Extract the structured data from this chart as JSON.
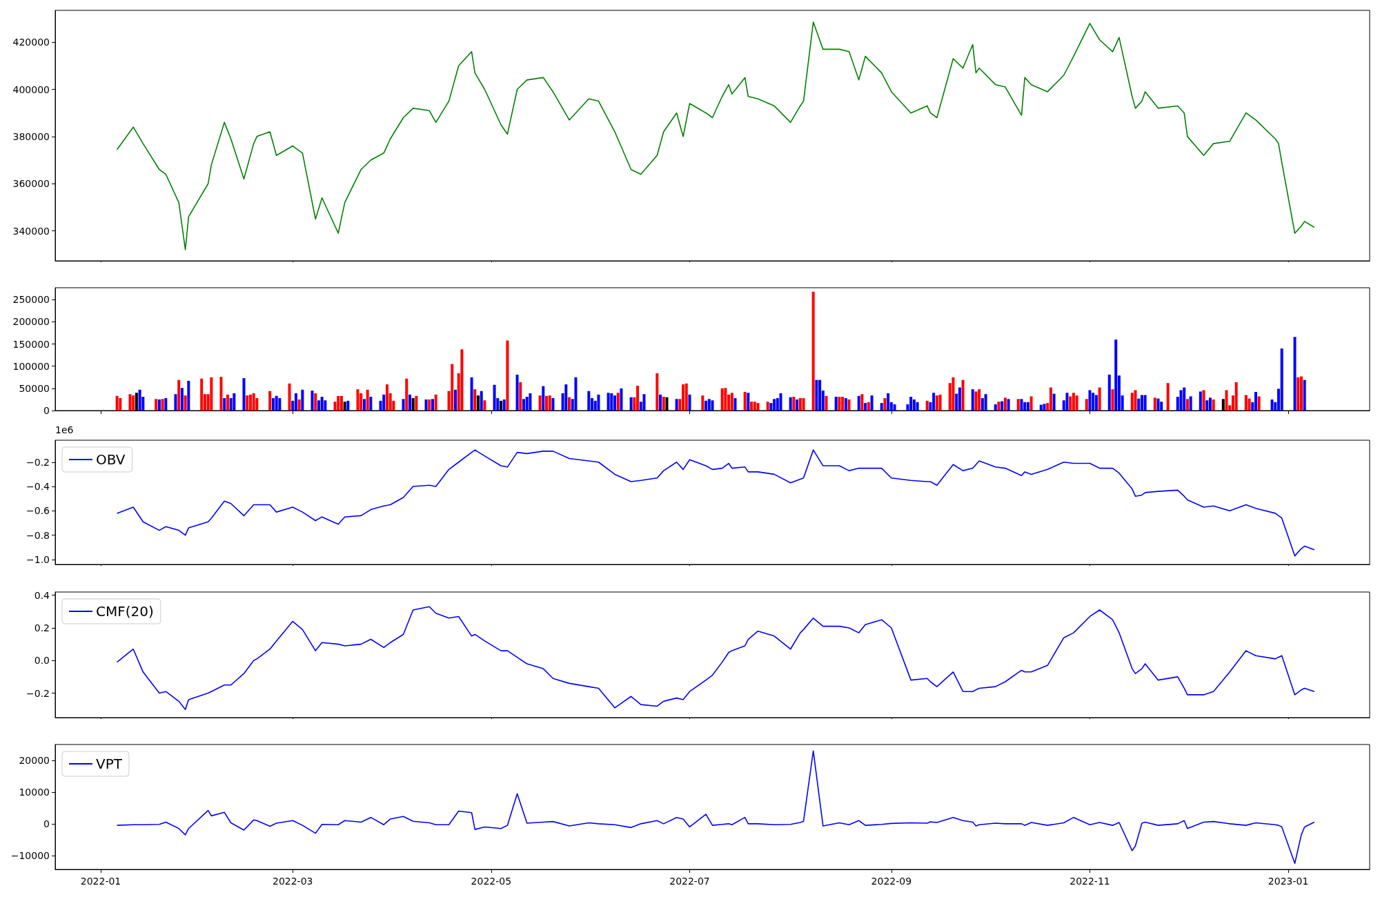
{
  "chart_data": [
    {
      "type": "line",
      "x": [
        "2022-01-06",
        "2022-01-11",
        "2022-01-14",
        "2022-01-19",
        "2022-01-21",
        "2022-01-25",
        "2022-01-27",
        "2022-01-28",
        "2022-02-03",
        "2022-02-04",
        "2022-02-08",
        "2022-02-10",
        "2022-02-14",
        "2022-02-17",
        "2022-02-18",
        "2022-02-22",
        "2022-02-24",
        "2022-03-01",
        "2022-03-04",
        "2022-03-08",
        "2022-03-10",
        "2022-03-15",
        "2022-03-17",
        "2022-03-22",
        "2022-03-25",
        "2022-03-29",
        "2022-03-31",
        "2022-04-04",
        "2022-04-07",
        "2022-04-12",
        "2022-04-14",
        "2022-04-18",
        "2022-04-21",
        "2022-04-25",
        "2022-04-26",
        "2022-04-29",
        "2022-05-04",
        "2022-05-06",
        "2022-05-09",
        "2022-05-12",
        "2022-05-17",
        "2022-05-20",
        "2022-05-25",
        "2022-05-31",
        "2022-06-03",
        "2022-06-08",
        "2022-06-13",
        "2022-06-16",
        "2022-06-21",
        "2022-06-23",
        "2022-06-27",
        "2022-06-29",
        "2022-07-01",
        "2022-07-06",
        "2022-07-08",
        "2022-07-11",
        "2022-07-13",
        "2022-07-14",
        "2022-07-18",
        "2022-07-19",
        "2022-07-22",
        "2022-07-27",
        "2022-08-01",
        "2022-08-04",
        "2022-08-05",
        "2022-08-08",
        "2022-08-11",
        "2022-08-16",
        "2022-08-19",
        "2022-08-22",
        "2022-08-24",
        "2022-08-29",
        "2022-09-01",
        "2022-09-07",
        "2022-09-12",
        "2022-09-13",
        "2022-09-15",
        "2022-09-20",
        "2022-09-23",
        "2022-09-26",
        "2022-09-27",
        "2022-09-28",
        "2022-10-03",
        "2022-10-06",
        "2022-10-11",
        "2022-10-12",
        "2022-10-14",
        "2022-10-19",
        "2022-10-24",
        "2022-10-27",
        "2022-11-01",
        "2022-11-04",
        "2022-11-08",
        "2022-11-10",
        "2022-11-14",
        "2022-11-15",
        "2022-11-17",
        "2022-11-18",
        "2022-11-22",
        "2022-11-28",
        "2022-11-30",
        "2022-12-01",
        "2022-12-06",
        "2022-12-09",
        "2022-12-14",
        "2022-12-19",
        "2022-12-22",
        "2022-12-28",
        "2022-12-29",
        "2022-12-30",
        "2023-01-03",
        "2023-01-05",
        "2023-01-06",
        "2023-01-09"
      ],
      "series": [
        {
          "color": "#008000",
          "values": [
            374500,
            384000,
            377000,
            366000,
            364000,
            352000,
            332000,
            346000,
            360000,
            368000,
            386000,
            379000,
            362000,
            377000,
            380000,
            382000,
            372000,
            376000,
            373000,
            345000,
            354000,
            339000,
            352000,
            366000,
            370000,
            373000,
            379000,
            388000,
            392000,
            391000,
            386000,
            395000,
            410000,
            416000,
            407000,
            400000,
            385000,
            381000,
            400000,
            404000,
            405000,
            399000,
            387000,
            396000,
            395000,
            382000,
            366000,
            364000,
            372000,
            382000,
            390000,
            380000,
            394000,
            390000,
            388000,
            397000,
            402000,
            398000,
            405000,
            397000,
            396000,
            393000,
            386000,
            393000,
            395000,
            428500,
            417000,
            417000,
            416000,
            404000,
            414000,
            407000,
            399000,
            390000,
            393000,
            390000,
            388000,
            413000,
            409000,
            419000,
            407000,
            409000,
            402000,
            401000,
            389000,
            405000,
            402000,
            399000,
            406000,
            414000,
            428000,
            421000,
            416000,
            422000,
            397000,
            392000,
            395000,
            399000,
            392000,
            393000,
            390000,
            380000,
            372000,
            377000,
            378000,
            390000,
            387000,
            379000,
            377000,
            369000,
            339000,
            342000,
            344000,
            341500
          ]
        }
      ],
      "xlim": [
        "2021-12-18",
        "2023-01-26"
      ],
      "xticks": [
        "2022-01",
        "2022-03",
        "2022-05",
        "2022-07",
        "2022-09",
        "2022-11",
        "2023-01"
      ],
      "ylim": [
        327300,
        433500
      ],
      "yticks": [
        340000,
        360000,
        380000,
        400000,
        420000
      ],
      "tick_labels": "y"
    },
    {
      "type": "bar",
      "x": [
        "2022-01-06",
        "2022-01-07",
        "2022-01-10",
        "2022-01-11",
        "2022-01-12",
        "2022-01-13",
        "2022-01-14",
        "2022-01-18",
        "2022-01-19",
        "2022-01-20",
        "2022-01-21",
        "2022-01-24",
        "2022-01-25",
        "2022-01-26",
        "2022-01-27",
        "2022-01-28",
        "2022-02-01",
        "2022-02-02",
        "2022-02-03",
        "2022-02-04",
        "2022-02-07",
        "2022-02-08",
        "2022-02-09",
        "2022-02-10",
        "2022-02-11",
        "2022-02-14",
        "2022-02-15",
        "2022-02-16",
        "2022-02-17",
        "2022-02-18",
        "2022-02-22",
        "2022-02-23",
        "2022-02-24",
        "2022-02-25",
        "2022-02-28",
        "2022-03-01",
        "2022-03-02",
        "2022-03-03",
        "2022-03-04",
        "2022-03-07",
        "2022-03-08",
        "2022-03-09",
        "2022-03-10",
        "2022-03-11",
        "2022-03-14",
        "2022-03-15",
        "2022-03-16",
        "2022-03-17",
        "2022-03-18",
        "2022-03-21",
        "2022-03-22",
        "2022-03-23",
        "2022-03-24",
        "2022-03-25",
        "2022-03-28",
        "2022-03-29",
        "2022-03-30",
        "2022-03-31",
        "2022-04-01",
        "2022-04-04",
        "2022-04-05",
        "2022-04-06",
        "2022-04-07",
        "2022-04-08",
        "2022-04-11",
        "2022-04-12",
        "2022-04-13",
        "2022-04-14",
        "2022-04-18",
        "2022-04-19",
        "2022-04-20",
        "2022-04-21",
        "2022-04-22",
        "2022-04-25",
        "2022-04-26",
        "2022-04-27",
        "2022-04-28",
        "2022-04-29",
        "2022-05-02",
        "2022-05-03",
        "2022-05-04",
        "2022-05-05",
        "2022-05-06",
        "2022-05-09",
        "2022-05-10",
        "2022-05-11",
        "2022-05-12",
        "2022-05-13",
        "2022-05-16",
        "2022-05-17",
        "2022-05-18",
        "2022-05-19",
        "2022-05-20",
        "2022-05-23",
        "2022-05-24",
        "2022-05-25",
        "2022-05-26",
        "2022-05-27",
        "2022-05-31",
        "2022-06-01",
        "2022-06-02",
        "2022-06-03",
        "2022-06-06",
        "2022-06-07",
        "2022-06-08",
        "2022-06-09",
        "2022-06-10",
        "2022-06-13",
        "2022-06-14",
        "2022-06-15",
        "2022-06-16",
        "2022-06-17",
        "2022-06-21",
        "2022-06-22",
        "2022-06-23",
        "2022-06-24",
        "2022-06-27",
        "2022-06-28",
        "2022-06-29",
        "2022-06-30",
        "2022-07-01",
        "2022-07-05",
        "2022-07-06",
        "2022-07-07",
        "2022-07-08",
        "2022-07-11",
        "2022-07-12",
        "2022-07-13",
        "2022-07-14",
        "2022-07-15",
        "2022-07-18",
        "2022-07-19",
        "2022-07-20",
        "2022-07-21",
        "2022-07-22",
        "2022-07-25",
        "2022-07-26",
        "2022-07-27",
        "2022-07-28",
        "2022-07-29",
        "2022-08-01",
        "2022-08-02",
        "2022-08-03",
        "2022-08-04",
        "2022-08-05",
        "2022-08-08",
        "2022-08-09",
        "2022-08-10",
        "2022-08-11",
        "2022-08-12",
        "2022-08-15",
        "2022-08-16",
        "2022-08-17",
        "2022-08-18",
        "2022-08-19",
        "2022-08-22",
        "2022-08-23",
        "2022-08-24",
        "2022-08-25",
        "2022-08-26",
        "2022-08-29",
        "2022-08-30",
        "2022-08-31",
        "2022-09-01",
        "2022-09-02",
        "2022-09-06",
        "2022-09-07",
        "2022-09-08",
        "2022-09-09",
        "2022-09-12",
        "2022-09-13",
        "2022-09-14",
        "2022-09-15",
        "2022-09-16",
        "2022-09-19",
        "2022-09-20",
        "2022-09-21",
        "2022-09-22",
        "2022-09-23",
        "2022-09-26",
        "2022-09-27",
        "2022-09-28",
        "2022-09-29",
        "2022-09-30",
        "2022-10-03",
        "2022-10-04",
        "2022-10-05",
        "2022-10-06",
        "2022-10-07",
        "2022-10-10",
        "2022-10-11",
        "2022-10-12",
        "2022-10-13",
        "2022-10-14",
        "2022-10-17",
        "2022-10-18",
        "2022-10-19",
        "2022-10-20",
        "2022-10-21",
        "2022-10-24",
        "2022-10-25",
        "2022-10-26",
        "2022-10-27",
        "2022-10-28",
        "2022-10-31",
        "2022-11-01",
        "2022-11-02",
        "2022-11-03",
        "2022-11-04",
        "2022-11-07",
        "2022-11-08",
        "2022-11-09",
        "2022-11-10",
        "2022-11-11",
        "2022-11-14",
        "2022-11-15",
        "2022-11-16",
        "2022-11-17",
        "2022-11-18",
        "2022-11-21",
        "2022-11-22",
        "2022-11-23",
        "2022-11-25",
        "2022-11-28",
        "2022-11-29",
        "2022-11-30",
        "2022-12-01",
        "2022-12-02",
        "2022-12-05",
        "2022-12-06",
        "2022-12-07",
        "2022-12-08",
        "2022-12-09",
        "2022-12-12",
        "2022-12-13",
        "2022-12-14",
        "2022-12-15",
        "2022-12-16",
        "2022-12-19",
        "2022-12-20",
        "2022-12-21",
        "2022-12-22",
        "2022-12-23",
        "2022-12-27",
        "2022-12-28",
        "2022-12-29",
        "2022-12-30",
        "2023-01-03",
        "2023-01-04",
        "2023-01-05",
        "2023-01-06"
      ],
      "values": [
        33000,
        28000,
        37000,
        34000,
        40000,
        47000,
        31000,
        26000,
        25000,
        26000,
        28000,
        37000,
        69000,
        51000,
        34000,
        67000,
        72000,
        37000,
        37000,
        75000,
        76000,
        28000,
        36000,
        28000,
        39000,
        73000,
        34000,
        36000,
        39000,
        28000,
        44000,
        28000,
        33000,
        28000,
        61000,
        22000,
        39000,
        25000,
        47000,
        45000,
        39000,
        23000,
        31000,
        23000,
        20000,
        33000,
        33000,
        20000,
        22000,
        48000,
        39000,
        26000,
        47000,
        31000,
        22000,
        36000,
        59000,
        39000,
        22000,
        26000,
        72000,
        36000,
        28000,
        33000,
        25000,
        25000,
        26000,
        36000,
        44000,
        105000,
        47000,
        84000,
        138000,
        75000,
        48000,
        34000,
        44000,
        23000,
        58000,
        28000,
        22000,
        25000,
        158000,
        81000,
        64000,
        26000,
        31000,
        39000,
        34000,
        55000,
        33000,
        34000,
        28000,
        39000,
        59000,
        30000,
        26000,
        75000,
        44000,
        28000,
        22000,
        36000,
        40000,
        39000,
        34000,
        40000,
        50000,
        30000,
        30000,
        56000,
        20000,
        37000,
        84000,
        36000,
        31000,
        30000,
        26000,
        26000,
        59000,
        61000,
        36000,
        34000,
        22000,
        26000,
        23000,
        50000,
        51000,
        36000,
        40000,
        28000,
        42000,
        40000,
        20000,
        20000,
        17000,
        20000,
        17000,
        26000,
        28000,
        39000,
        30000,
        31000,
        25000,
        28000,
        28000,
        268000,
        69000,
        69000,
        45000,
        33000,
        31000,
        31000,
        31000,
        28000,
        25000,
        33000,
        37000,
        17000,
        19000,
        34000,
        17000,
        28000,
        39000,
        19000,
        14000,
        14000,
        31000,
        25000,
        19000,
        22000,
        19000,
        40000,
        34000,
        36000,
        62000,
        75000,
        38000,
        52000,
        69000,
        48000,
        43000,
        48000,
        28000,
        37000,
        14000,
        20000,
        21000,
        29000,
        26000,
        26000,
        26000,
        19000,
        19000,
        32000,
        13000,
        15000,
        17000,
        52000,
        38000,
        23000,
        40000,
        32000,
        40000,
        34000,
        26000,
        46000,
        40000,
        35000,
        52000,
        81000,
        48000,
        160000,
        79000,
        34000,
        40000,
        46000,
        27000,
        35000,
        35000,
        29000,
        27000,
        20000,
        62000,
        31000,
        46000,
        52000,
        26000,
        32000,
        43000,
        46000,
        23000,
        29000,
        25000,
        26000,
        46000,
        12000,
        34000,
        64000,
        35000,
        27000,
        19000,
        42000,
        32000,
        25000,
        19000,
        49000,
        140000,
        166000,
        75000,
        77000,
        69000
      ],
      "colors": [
        "#ff0000",
        "#ff0000",
        "#ff0000",
        "#ff0000",
        "#000000",
        "#0000ff",
        "#0000ff",
        "#ff0000",
        "#0000ff",
        "#ff0000",
        "#0000ff",
        "#0000ff",
        "#ff0000",
        "#0000ff",
        "#ff0000",
        "#0000ff",
        "#ff0000",
        "#ff0000",
        "#ff0000",
        "#ff0000",
        "#ff0000",
        "#0000ff",
        "#ff0000",
        "#0000ff",
        "#0000ff",
        "#0000ff",
        "#ff0000",
        "#ff0000",
        "#ff0000",
        "#ff0000",
        "#ff0000",
        "#0000ff",
        "#0000ff",
        "#0000ff",
        "#ff0000",
        "#0000ff",
        "#0000ff",
        "#ff0000",
        "#0000ff",
        "#0000ff",
        "#ff0000",
        "#0000ff",
        "#0000ff",
        "#0000ff",
        "#ff0000",
        "#ff0000",
        "#ff0000",
        "#000000",
        "#0000ff",
        "#ff0000",
        "#ff0000",
        "#0000ff",
        "#ff0000",
        "#0000ff",
        "#0000ff",
        "#0000ff",
        "#ff0000",
        "#ff0000",
        "#ff0000",
        "#0000ff",
        "#ff0000",
        "#0000ff",
        "#000000",
        "#ff0000",
        "#0000ff",
        "#ff0000",
        "#0000ff",
        "#ff0000",
        "#ff0000",
        "#ff0000",
        "#0000ff",
        "#ff0000",
        "#ff0000",
        "#0000ff",
        "#ff0000",
        "#000000",
        "#0000ff",
        "#ff0000",
        "#0000ff",
        "#0000ff",
        "#000000",
        "#0000ff",
        "#ff0000",
        "#0000ff",
        "#ff0000",
        "#0000ff",
        "#0000ff",
        "#0000ff",
        "#ff0000",
        "#0000ff",
        "#ff0000",
        "#ff0000",
        "#0000ff",
        "#0000ff",
        "#0000ff",
        "#ff0000",
        "#0000ff",
        "#0000ff",
        "#0000ff",
        "#0000ff",
        "#0000ff",
        "#0000ff",
        "#0000ff",
        "#0000ff",
        "#0000ff",
        "#ff0000",
        "#0000ff",
        "#0000ff",
        "#ff0000",
        "#ff0000",
        "#0000ff",
        "#0000ff",
        "#ff0000",
        "#0000ff",
        "#ff0000",
        "#000000",
        "#0000ff",
        "#ff0000",
        "#ff0000",
        "#ff0000",
        "#0000ff",
        "#ff0000",
        "#0000ff",
        "#0000ff",
        "#0000ff",
        "#ff0000",
        "#ff0000",
        "#ff0000",
        "#ff0000",
        "#0000ff",
        "#ff0000",
        "#0000ff",
        "#ff0000",
        "#ff0000",
        "#ff0000",
        "#ff0000",
        "#0000ff",
        "#0000ff",
        "#0000ff",
        "#0000ff",
        "#0000ff",
        "#ff0000",
        "#0000ff",
        "#ff0000",
        "#ff0000",
        "#ff0000",
        "#0000ff",
        "#0000ff",
        "#0000ff",
        "#ff0000",
        "#0000ff",
        "#ff0000",
        "#ff0000",
        "#0000ff",
        "#ff0000",
        "#0000ff",
        "#ff0000",
        "#0000ff",
        "#ff0000",
        "#0000ff",
        "#0000ff",
        "#ff0000",
        "#0000ff",
        "#0000ff",
        "#0000ff",
        "#0000ff",
        "#0000ff",
        "#0000ff",
        "#0000ff",
        "#ff0000",
        "#0000ff",
        "#0000ff",
        "#ff0000",
        "#ff0000",
        "#ff0000",
        "#ff0000",
        "#0000ff",
        "#0000ff",
        "#ff0000",
        "#0000ff",
        "#ff0000",
        "#ff0000",
        "#0000ff",
        "#0000ff",
        "#0000ff",
        "#ff0000",
        "#0000ff",
        "#ff0000",
        "#0000ff",
        "#ff0000",
        "#0000ff",
        "#0000ff",
        "#0000ff",
        "#ff0000",
        "#0000ff",
        "#0000ff",
        "#ff0000",
        "#ff0000",
        "#0000ff",
        "#0000ff",
        "#0000ff",
        "#ff0000",
        "#ff0000",
        "#ff0000",
        "#ff0000",
        "#0000ff",
        "#0000ff",
        "#0000ff",
        "#ff0000",
        "#0000ff",
        "#ff0000",
        "#0000ff",
        "#0000ff",
        "#0000ff",
        "#ff0000",
        "#ff0000",
        "#0000ff",
        "#0000ff",
        "#0000ff",
        "#ff0000",
        "#0000ff",
        "#0000ff",
        "#ff0000",
        "#0000ff",
        "#0000ff",
        "#0000ff",
        "#ff0000",
        "#0000ff",
        "#0000ff",
        "#ff0000",
        "#0000ff",
        "#0000ff",
        "#ff0000",
        "#000000",
        "#ff0000",
        "#ff0000",
        "#ff0000",
        "#ff0000",
        "#ff0000",
        "#ff0000",
        "#0000ff",
        "#0000ff",
        "#ff0000",
        "#0000ff",
        "#0000ff",
        "#0000ff",
        "#0000ff",
        "#0000ff",
        "#ff0000",
        "#ff0000",
        "#0000ff"
      ],
      "xlim": [
        "2021-12-18",
        "2023-01-26"
      ],
      "xticks": [
        "2022-01",
        "2022-03",
        "2022-05",
        "2022-07",
        "2022-09",
        "2022-11",
        "2023-01"
      ],
      "ylim": [
        0,
        277000
      ],
      "yticks": [
        0,
        50000,
        100000,
        150000,
        200000,
        250000
      ],
      "tick_labels": "y"
    },
    {
      "type": "line",
      "x": [
        "2022-01-06",
        "2022-01-11",
        "2022-01-14",
        "2022-01-19",
        "2022-01-21",
        "2022-01-25",
        "2022-01-27",
        "2022-01-28",
        "2022-02-03",
        "2022-02-04",
        "2022-02-08",
        "2022-02-10",
        "2022-02-14",
        "2022-02-17",
        "2022-02-18",
        "2022-02-22",
        "2022-02-24",
        "2022-03-01",
        "2022-03-04",
        "2022-03-08",
        "2022-03-10",
        "2022-03-15",
        "2022-03-17",
        "2022-03-22",
        "2022-03-25",
        "2022-03-29",
        "2022-03-31",
        "2022-04-04",
        "2022-04-07",
        "2022-04-12",
        "2022-04-14",
        "2022-04-18",
        "2022-04-21",
        "2022-04-25",
        "2022-04-26",
        "2022-04-29",
        "2022-05-04",
        "2022-05-06",
        "2022-05-09",
        "2022-05-12",
        "2022-05-17",
        "2022-05-20",
        "2022-05-25",
        "2022-05-31",
        "2022-06-03",
        "2022-06-08",
        "2022-06-13",
        "2022-06-16",
        "2022-06-21",
        "2022-06-23",
        "2022-06-27",
        "2022-06-29",
        "2022-07-01",
        "2022-07-06",
        "2022-07-08",
        "2022-07-11",
        "2022-07-13",
        "2022-07-14",
        "2022-07-18",
        "2022-07-19",
        "2022-07-22",
        "2022-07-27",
        "2022-08-01",
        "2022-08-04",
        "2022-08-05",
        "2022-08-08",
        "2022-08-11",
        "2022-08-16",
        "2022-08-19",
        "2022-08-22",
        "2022-08-24",
        "2022-08-29",
        "2022-09-01",
        "2022-09-07",
        "2022-09-12",
        "2022-09-13",
        "2022-09-15",
        "2022-09-20",
        "2022-09-23",
        "2022-09-26",
        "2022-09-27",
        "2022-09-28",
        "2022-10-03",
        "2022-10-06",
        "2022-10-11",
        "2022-10-12",
        "2022-10-14",
        "2022-10-19",
        "2022-10-24",
        "2022-10-27",
        "2022-11-01",
        "2022-11-04",
        "2022-11-08",
        "2022-11-10",
        "2022-11-14",
        "2022-11-15",
        "2022-11-17",
        "2022-11-18",
        "2022-11-22",
        "2022-11-28",
        "2022-11-30",
        "2022-12-01",
        "2022-12-06",
        "2022-12-09",
        "2022-12-14",
        "2022-12-19",
        "2022-12-22",
        "2022-12-28",
        "2022-12-29",
        "2022-12-30",
        "2023-01-03",
        "2023-01-05",
        "2023-01-06",
        "2023-01-09"
      ],
      "series": [
        {
          "name": "OBV",
          "color": "#0000ff",
          "values": [
            -0.62,
            -0.57,
            -0.69,
            -0.76,
            -0.73,
            -0.76,
            -0.8,
            -0.74,
            -0.69,
            -0.66,
            -0.52,
            -0.54,
            -0.64,
            -0.55,
            -0.55,
            -0.55,
            -0.61,
            -0.57,
            -0.61,
            -0.68,
            -0.65,
            -0.71,
            -0.65,
            -0.64,
            -0.59,
            -0.56,
            -0.55,
            -0.49,
            -0.4,
            -0.39,
            -0.4,
            -0.26,
            -0.2,
            -0.12,
            -0.1,
            -0.15,
            -0.23,
            -0.24,
            -0.12,
            -0.13,
            -0.11,
            -0.11,
            -0.17,
            -0.19,
            -0.2,
            -0.3,
            -0.36,
            -0.35,
            -0.33,
            -0.27,
            -0.2,
            -0.26,
            -0.18,
            -0.23,
            -0.26,
            -0.25,
            -0.21,
            -0.25,
            -0.24,
            -0.28,
            -0.28,
            -0.3,
            -0.37,
            -0.34,
            -0.33,
            -0.1,
            -0.23,
            -0.23,
            -0.27,
            -0.25,
            -0.25,
            -0.25,
            -0.33,
            -0.35,
            -0.36,
            -0.36,
            -0.39,
            -0.22,
            -0.27,
            -0.25,
            -0.22,
            -0.19,
            -0.24,
            -0.25,
            -0.31,
            -0.28,
            -0.3,
            -0.26,
            -0.2,
            -0.21,
            -0.21,
            -0.25,
            -0.25,
            -0.29,
            -0.42,
            -0.48,
            -0.47,
            -0.45,
            -0.44,
            -0.43,
            -0.48,
            -0.51,
            -0.57,
            -0.56,
            -0.6,
            -0.55,
            -0.58,
            -0.62,
            -0.64,
            -0.66,
            -0.97,
            -0.91,
            -0.89,
            -0.92
          ]
        }
      ],
      "xlim": [
        "2021-12-18",
        "2023-01-26"
      ],
      "xticks": [
        "2022-01",
        "2022-03",
        "2022-05",
        "2022-07",
        "2022-09",
        "2022-11",
        "2023-01"
      ],
      "ylim": [
        -1.04,
        -0.02
      ],
      "yticks": [
        {
          "value": -1.0,
          "label": "−1.0"
        },
        {
          "value": -0.8,
          "label": "−0.8"
        },
        {
          "value": -0.6,
          "label": "−0.6"
        },
        {
          "value": -0.4,
          "label": "−0.4"
        },
        {
          "value": -0.2,
          "label": "−0.2"
        }
      ],
      "annotations": [
        "1e6"
      ],
      "legend": "top left",
      "tick_labels": "y"
    },
    {
      "type": "line",
      "x": [
        "2022-01-06",
        "2022-01-11",
        "2022-01-14",
        "2022-01-19",
        "2022-01-21",
        "2022-01-25",
        "2022-01-27",
        "2022-01-28",
        "2022-02-03",
        "2022-02-04",
        "2022-02-08",
        "2022-02-10",
        "2022-02-14",
        "2022-02-17",
        "2022-02-18",
        "2022-02-22",
        "2022-02-24",
        "2022-03-01",
        "2022-03-04",
        "2022-03-08",
        "2022-03-10",
        "2022-03-15",
        "2022-03-17",
        "2022-03-22",
        "2022-03-25",
        "2022-03-29",
        "2022-03-31",
        "2022-04-04",
        "2022-04-07",
        "2022-04-12",
        "2022-04-14",
        "2022-04-18",
        "2022-04-21",
        "2022-04-25",
        "2022-04-26",
        "2022-04-29",
        "2022-05-04",
        "2022-05-06",
        "2022-05-09",
        "2022-05-12",
        "2022-05-17",
        "2022-05-20",
        "2022-05-25",
        "2022-05-31",
        "2022-06-03",
        "2022-06-08",
        "2022-06-13",
        "2022-06-16",
        "2022-06-21",
        "2022-06-23",
        "2022-06-27",
        "2022-06-29",
        "2022-07-01",
        "2022-07-06",
        "2022-07-08",
        "2022-07-11",
        "2022-07-13",
        "2022-07-14",
        "2022-07-18",
        "2022-07-19",
        "2022-07-22",
        "2022-07-27",
        "2022-08-01",
        "2022-08-04",
        "2022-08-05",
        "2022-08-08",
        "2022-08-11",
        "2022-08-16",
        "2022-08-19",
        "2022-08-22",
        "2022-08-24",
        "2022-08-29",
        "2022-09-01",
        "2022-09-07",
        "2022-09-12",
        "2022-09-13",
        "2022-09-15",
        "2022-09-20",
        "2022-09-23",
        "2022-09-26",
        "2022-09-27",
        "2022-09-28",
        "2022-10-03",
        "2022-10-06",
        "2022-10-11",
        "2022-10-12",
        "2022-10-14",
        "2022-10-19",
        "2022-10-24",
        "2022-10-27",
        "2022-11-01",
        "2022-11-04",
        "2022-11-08",
        "2022-11-10",
        "2022-11-14",
        "2022-11-15",
        "2022-11-17",
        "2022-11-18",
        "2022-11-22",
        "2022-11-28",
        "2022-11-30",
        "2022-12-01",
        "2022-12-06",
        "2022-12-09",
        "2022-12-14",
        "2022-12-19",
        "2022-12-22",
        "2022-12-28",
        "2022-12-29",
        "2022-12-30",
        "2023-01-03",
        "2023-01-05",
        "2023-01-06",
        "2023-01-09"
      ],
      "series": [
        {
          "name": "CMF(20)",
          "color": "#0000ff",
          "values": [
            -0.01,
            0.07,
            -0.07,
            -0.2,
            -0.19,
            -0.25,
            -0.3,
            -0.24,
            -0.2,
            -0.19,
            -0.15,
            -0.15,
            -0.08,
            0.0,
            0.01,
            0.07,
            0.12,
            0.24,
            0.19,
            0.06,
            0.11,
            0.1,
            0.09,
            0.1,
            0.13,
            0.08,
            0.11,
            0.16,
            0.31,
            0.33,
            0.29,
            0.26,
            0.27,
            0.15,
            0.16,
            0.12,
            0.06,
            0.06,
            0.02,
            -0.02,
            -0.05,
            -0.11,
            -0.14,
            -0.16,
            -0.17,
            -0.29,
            -0.22,
            -0.27,
            -0.28,
            -0.25,
            -0.23,
            -0.24,
            -0.19,
            -0.12,
            -0.09,
            -0.01,
            0.05,
            0.06,
            0.09,
            0.13,
            0.18,
            0.15,
            0.07,
            0.17,
            0.19,
            0.26,
            0.21,
            0.21,
            0.2,
            0.17,
            0.22,
            0.25,
            0.2,
            -0.12,
            -0.11,
            -0.13,
            -0.16,
            -0.07,
            -0.19,
            -0.19,
            -0.18,
            -0.17,
            -0.16,
            -0.13,
            -0.06,
            -0.07,
            -0.07,
            -0.03,
            0.14,
            0.17,
            0.27,
            0.31,
            0.25,
            0.17,
            -0.05,
            -0.08,
            -0.05,
            -0.02,
            -0.12,
            -0.1,
            -0.17,
            -0.21,
            -0.21,
            -0.19,
            -0.07,
            0.06,
            0.03,
            0.01,
            0.02,
            0.03,
            -0.21,
            -0.18,
            -0.17,
            -0.19
          ]
        }
      ],
      "xlim": [
        "2021-12-18",
        "2023-01-26"
      ],
      "xticks": [
        "2022-01",
        "2022-03",
        "2022-05",
        "2022-07",
        "2022-09",
        "2022-11",
        "2023-01"
      ],
      "ylim": [
        -0.35,
        0.42
      ],
      "yticks": [
        {
          "value": -0.2,
          "label": "−0.2"
        },
        {
          "value": 0,
          "label": "0.0"
        },
        {
          "value": 0.2,
          "label": "0.2"
        },
        {
          "value": 0.4,
          "label": "0.4"
        }
      ],
      "legend": "top left",
      "tick_labels": "y"
    },
    {
      "type": "line",
      "x": [
        "2022-01-06",
        "2022-01-11",
        "2022-01-14",
        "2022-01-19",
        "2022-01-21",
        "2022-01-25",
        "2022-01-27",
        "2022-01-28",
        "2022-02-03",
        "2022-02-04",
        "2022-02-08",
        "2022-02-10",
        "2022-02-14",
        "2022-02-17",
        "2022-02-18",
        "2022-02-22",
        "2022-02-24",
        "2022-03-01",
        "2022-03-04",
        "2022-03-08",
        "2022-03-10",
        "2022-03-15",
        "2022-03-17",
        "2022-03-22",
        "2022-03-25",
        "2022-03-29",
        "2022-03-31",
        "2022-04-04",
        "2022-04-07",
        "2022-04-12",
        "2022-04-14",
        "2022-04-18",
        "2022-04-21",
        "2022-04-25",
        "2022-04-26",
        "2022-04-29",
        "2022-05-04",
        "2022-05-06",
        "2022-05-09",
        "2022-05-12",
        "2022-05-17",
        "2022-05-20",
        "2022-05-25",
        "2022-05-31",
        "2022-06-03",
        "2022-06-08",
        "2022-06-13",
        "2022-06-16",
        "2022-06-21",
        "2022-06-23",
        "2022-06-27",
        "2022-06-29",
        "2022-07-01",
        "2022-07-06",
        "2022-07-08",
        "2022-07-11",
        "2022-07-13",
        "2022-07-14",
        "2022-07-18",
        "2022-07-19",
        "2022-07-22",
        "2022-07-27",
        "2022-08-01",
        "2022-08-04",
        "2022-08-05",
        "2022-08-08",
        "2022-08-11",
        "2022-08-16",
        "2022-08-19",
        "2022-08-22",
        "2022-08-24",
        "2022-08-29",
        "2022-09-01",
        "2022-09-07",
        "2022-09-12",
        "2022-09-13",
        "2022-09-15",
        "2022-09-20",
        "2022-09-23",
        "2022-09-26",
        "2022-09-27",
        "2022-09-28",
        "2022-10-03",
        "2022-10-06",
        "2022-10-11",
        "2022-10-12",
        "2022-10-14",
        "2022-10-19",
        "2022-10-24",
        "2022-10-27",
        "2022-11-01",
        "2022-11-04",
        "2022-11-08",
        "2022-11-10",
        "2022-11-14",
        "2022-11-15",
        "2022-11-17",
        "2022-11-18",
        "2022-11-22",
        "2022-11-28",
        "2022-11-30",
        "2022-12-01",
        "2022-12-06",
        "2022-12-09",
        "2022-12-14",
        "2022-12-19",
        "2022-12-22",
        "2022-12-28",
        "2022-12-29",
        "2022-12-30",
        "2023-01-03",
        "2023-01-05",
        "2023-01-06",
        "2023-01-09"
      ],
      "series": [
        {
          "name": "VPT",
          "color": "#0000ff",
          "values": [
            -500,
            -300,
            -300,
            -200,
            500,
            -1500,
            -3500,
            -1500,
            4200,
            2500,
            3600,
            300,
            -2000,
            1200,
            1000,
            -800,
            200,
            1000,
            -500,
            -3000,
            -200,
            -300,
            1000,
            500,
            2000,
            -300,
            1500,
            2300,
            800,
            300,
            -300,
            -300,
            4000,
            3500,
            -1800,
            -1000,
            -1500,
            -500,
            9500,
            200,
            500,
            700,
            -700,
            300,
            0,
            -300,
            -1200,
            0,
            1000,
            0,
            2000,
            1500,
            -1000,
            3000,
            -500,
            -200,
            0,
            -300,
            2000,
            0,
            0,
            -300,
            -200,
            400,
            800,
            23000,
            -700,
            300,
            -300,
            1000,
            -500,
            -200,
            100,
            300,
            200,
            600,
            400,
            2000,
            1000,
            500,
            -700,
            -300,
            200,
            0,
            0,
            -500,
            400,
            -500,
            300,
            2000,
            -300,
            400,
            -500,
            400,
            -8500,
            -7000,
            200,
            500,
            -500,
            0,
            1000,
            -1500,
            500,
            700,
            0,
            -500,
            300,
            -300,
            -500,
            -1000,
            -12500,
            -3500,
            -1000,
            500
          ]
        }
      ],
      "xlim": [
        "2021-12-18",
        "2023-01-26"
      ],
      "xticks": [
        "2022-01",
        "2022-03",
        "2022-05",
        "2022-07",
        "2022-09",
        "2022-11",
        "2023-01"
      ],
      "ylim": [
        -14400,
        25000
      ],
      "yticks": [
        {
          "value": -10000,
          "label": "−10000"
        },
        0,
        10000,
        20000
      ],
      "legend": "top left"
    }
  ]
}
